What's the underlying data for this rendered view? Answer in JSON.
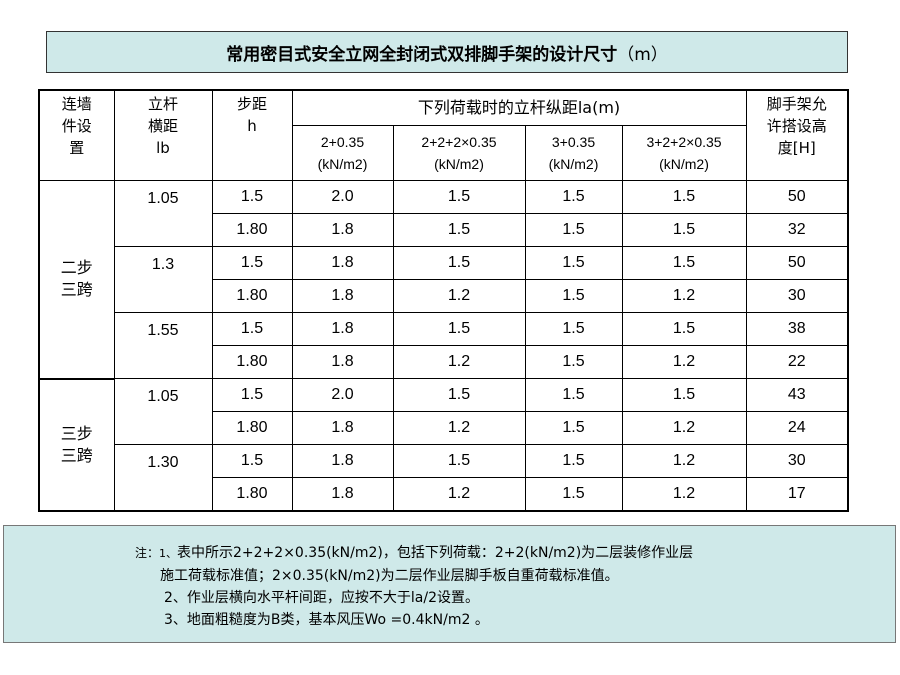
{
  "title": {
    "text": "常用密目式安全立网全封闭式双排脚手架的设计尺寸",
    "unit": "（m）"
  },
  "table": {
    "headers": {
      "col1": [
        "连墙",
        "件设",
        "置"
      ],
      "col2": [
        "立杆",
        "横距",
        "lb"
      ],
      "col3": [
        "步距",
        "h"
      ],
      "group": "下列荷载时的立杆纵距la(m)",
      "loads": [
        [
          "2+0.35",
          "(kN/m2)"
        ],
        [
          "2+2+2×0.35",
          "(kN/m2)"
        ],
        [
          "3+0.35",
          "(kN/m2)"
        ],
        [
          "3+2+2×0.35",
          "(kN/m2)"
        ]
      ],
      "last": [
        "脚手架允",
        "许搭设高",
        "度[H]"
      ]
    },
    "groups": [
      {
        "name": [
          "二步",
          "三跨"
        ]
      },
      {
        "name": [
          "三步",
          "三跨"
        ]
      }
    ],
    "spacings": [
      "1.05",
      "1.3",
      "1.55",
      "1.05",
      "1.30"
    ],
    "rows": [
      [
        "1.5",
        "2.0",
        "1.5",
        "1.5",
        "1.5",
        "50"
      ],
      [
        "1.80",
        "1.8",
        "1.5",
        "1.5",
        "1.5",
        "32"
      ],
      [
        "1.5",
        "1.8",
        "1.5",
        "1.5",
        "1.5",
        "50"
      ],
      [
        "1.80",
        "1.8",
        "1.2",
        "1.5",
        "1.2",
        "30"
      ],
      [
        "1.5",
        "1.8",
        "1.5",
        "1.5",
        "1.5",
        "38"
      ],
      [
        "1.80",
        "1.8",
        "1.2",
        "1.5",
        "1.2",
        "22"
      ],
      [
        "1.5",
        "2.0",
        "1.5",
        "1.5",
        "1.5",
        "43"
      ],
      [
        "1.80",
        "1.8",
        "1.2",
        "1.5",
        "1.2",
        "24"
      ],
      [
        "1.5",
        "1.8",
        "1.5",
        "1.5",
        "1.2",
        "30"
      ],
      [
        "1.80",
        "1.8",
        "1.2",
        "1.5",
        "1.2",
        "17"
      ]
    ]
  },
  "notes": {
    "prefix": "注：",
    "n1_num": "1、",
    "n1_a": "表中所示2+2+2×0.35(kN/m2)，包括下列荷载：2+2(kN/m2)为二层装修作业层",
    "n1_b": "施工荷载标准值；2×0.35(kN/m2)为二层作业层脚手板自重荷载标准值。",
    "n2": "2、作业层横向水平杆间距，应按不大于la/2设置。",
    "n3": "3、地面粗糙度为B类，基本风压Wo =0.4kN/m2 。"
  }
}
